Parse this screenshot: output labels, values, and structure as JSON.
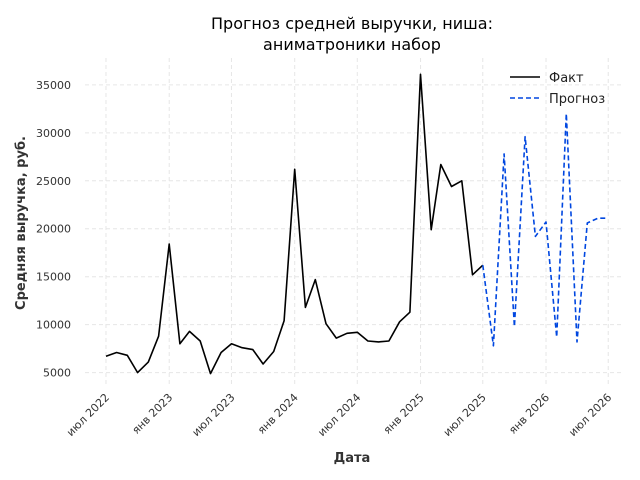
{
  "chart_data": {
    "type": "line",
    "title_lines": [
      "Прогноз средней выручки, ниша:",
      "аниматроники набор"
    ],
    "xlabel": "Дата",
    "ylabel": "Средняя выручка, руб.",
    "x_range": [
      "2022-05-01",
      "2026-08-10"
    ],
    "ylim": [
      3500,
      37800
    ],
    "y_ticks": [
      5000,
      10000,
      15000,
      20000,
      25000,
      30000,
      35000
    ],
    "x_ticks": [
      {
        "date": "2022-07-01",
        "label": "июл 2022"
      },
      {
        "date": "2023-01-01",
        "label": "янв 2023"
      },
      {
        "date": "2023-07-01",
        "label": "июл 2023"
      },
      {
        "date": "2024-01-01",
        "label": "янв 2024"
      },
      {
        "date": "2024-07-01",
        "label": "июл 2024"
      },
      {
        "date": "2025-01-01",
        "label": "янв 2025"
      },
      {
        "date": "2025-07-01",
        "label": "июл 2025"
      },
      {
        "date": "2026-01-01",
        "label": "янв 2026"
      },
      {
        "date": "2026-07-01",
        "label": "июл 2026"
      }
    ],
    "grid": true,
    "legend_position": "top-right",
    "series": [
      {
        "name": "Факт",
        "color": "#000000",
        "style": "solid",
        "x": [
          "2022-07-01",
          "2022-08-01",
          "2022-09-01",
          "2022-10-01",
          "2022-11-01",
          "2022-12-01",
          "2023-01-01",
          "2023-02-01",
          "2023-03-01",
          "2023-04-01",
          "2023-05-01",
          "2023-06-01",
          "2023-07-01",
          "2023-08-01",
          "2023-09-01",
          "2023-10-01",
          "2023-11-01",
          "2023-12-01",
          "2024-01-01",
          "2024-02-01",
          "2024-03-01",
          "2024-04-01",
          "2024-05-01",
          "2024-06-01",
          "2024-07-01",
          "2024-08-01",
          "2024-09-01",
          "2024-10-01",
          "2024-11-01",
          "2024-12-01",
          "2025-01-01",
          "2025-02-01",
          "2025-03-01",
          "2025-04-01",
          "2025-05-01",
          "2025-06-01",
          "2025-07-01"
        ],
        "y": [
          6700,
          7100,
          6800,
          5000,
          6100,
          8800,
          18400,
          8000,
          9300,
          8300,
          4900,
          7100,
          8000,
          7600,
          7400,
          5900,
          7200,
          10400,
          26200,
          11800,
          14700,
          10100,
          8600,
          9100,
          9200,
          8300,
          8200,
          8300,
          10300,
          11300,
          36100,
          19900,
          26700,
          24400,
          25000,
          15200,
          16200
        ]
      },
      {
        "name": "Прогноз",
        "color": "#0047e0",
        "style": "dashed",
        "x": [
          "2025-07-01",
          "2025-08-01",
          "2025-09-01",
          "2025-10-01",
          "2025-11-01",
          "2025-12-01",
          "2026-01-01",
          "2026-02-01",
          "2026-03-01",
          "2026-04-01",
          "2026-05-01",
          "2026-06-01",
          "2026-07-01"
        ],
        "y": [
          16200,
          7800,
          27800,
          9800,
          29600,
          19200,
          20700,
          8700,
          32000,
          8200,
          20600,
          21100,
          21100
        ]
      }
    ]
  }
}
